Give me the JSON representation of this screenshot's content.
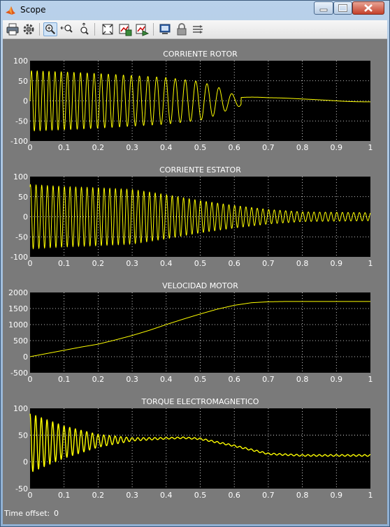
{
  "window": {
    "title": "Scope",
    "app_icon": "matlab-icon"
  },
  "window_buttons": [
    "minimize-icon",
    "maximize-icon",
    "close-icon"
  ],
  "toolbar": {
    "icons": [
      "print-icon",
      "parameters-icon",
      "zoom-icon",
      "zoom-x-icon",
      "zoom-y-icon",
      "autoscale-icon",
      "save-axes-icon",
      "restore-axes-icon",
      "floating-scope-icon",
      "lock-icon",
      "signal-selector-icon"
    ],
    "pressed": "zoom-icon"
  },
  "status": {
    "time_offset_label": "Time offset:",
    "time_offset_value": "0"
  },
  "colors": {
    "trace": "#ffff00",
    "axes_bg": "#000000",
    "figure_bg": "#7a7a7a",
    "grid": "#ffffff"
  },
  "chart_data": [
    {
      "type": "line",
      "title": "CORRIENTE ROTOR",
      "xlim": [
        0,
        1
      ],
      "ylim": [
        -100,
        100
      ],
      "xticks": [
        "0",
        "0.1",
        "0.2",
        "0.3",
        "0.4",
        "0.5",
        "0.6",
        "0.7",
        "0.8",
        "0.9",
        "1"
      ],
      "yticks": [
        "100",
        "50",
        "0",
        "-50",
        "-100"
      ],
      "grid": true,
      "series": [
        {
          "signal": "decaying oscillation",
          "envelope_t": [
            0,
            0.1,
            0.2,
            0.3,
            0.4,
            0.5,
            0.55,
            0.6,
            0.7,
            0.8,
            0.9,
            1
          ],
          "envelope_amp": [
            75,
            72,
            68,
            63,
            58,
            48,
            35,
            15,
            8,
            6,
            6,
            3
          ]
        }
      ]
    },
    {
      "type": "line",
      "title": "CORRIENTE ESTATOR",
      "xlim": [
        0,
        1
      ],
      "ylim": [
        -100,
        100
      ],
      "xticks": [
        "0",
        "0.1",
        "0.2",
        "0.3",
        "0.4",
        "0.5",
        "0.6",
        "0.7",
        "0.8",
        "0.9",
        "1"
      ],
      "yticks": [
        "100",
        "50",
        "0",
        "-50",
        "-100"
      ],
      "grid": true,
      "series": [
        {
          "signal": "oscillation",
          "envelope_t": [
            0,
            0.1,
            0.2,
            0.3,
            0.4,
            0.5,
            0.6,
            0.7,
            0.8,
            1
          ],
          "envelope_amp": [
            80,
            75,
            72,
            68,
            55,
            40,
            28,
            18,
            12,
            10
          ]
        }
      ]
    },
    {
      "type": "line",
      "title": "VELOCIDAD MOTOR",
      "xlim": [
        0,
        1
      ],
      "ylim": [
        -500,
        2000
      ],
      "xticks": [
        "0",
        "0.1",
        "0.2",
        "0.3",
        "0.4",
        "0.5",
        "0.6",
        "0.7",
        "0.8",
        "0.9",
        "1"
      ],
      "yticks": [
        "2000",
        "1500",
        "1000",
        "500",
        "0",
        "-500"
      ],
      "grid": true,
      "series": [
        {
          "x": [
            0,
            0.05,
            0.1,
            0.15,
            0.2,
            0.25,
            0.3,
            0.35,
            0.4,
            0.45,
            0.5,
            0.55,
            0.6,
            0.65,
            0.7,
            0.75,
            0.8,
            0.9,
            1.0
          ],
          "y": [
            0,
            100,
            200,
            300,
            390,
            520,
            660,
            820,
            1000,
            1170,
            1330,
            1480,
            1600,
            1680,
            1710,
            1720,
            1720,
            1720,
            1720
          ]
        }
      ]
    },
    {
      "type": "line",
      "title": "TORQUE ELECTROMAGNETICO",
      "xlim": [
        0,
        1
      ],
      "ylim": [
        -50,
        100
      ],
      "xticks": [
        "0",
        "0.1",
        "0.2",
        "0.3",
        "0.4",
        "0.5",
        "0.6",
        "0.7",
        "0.8",
        "0.9",
        "1"
      ],
      "yticks": [
        "100",
        "50",
        "0",
        "-50"
      ],
      "grid": true,
      "series": [
        {
          "mean_t": [
            0,
            0.15,
            0.3,
            0.45,
            0.5,
            0.6,
            0.7,
            0.8,
            1.0
          ],
          "mean_y": [
            35,
            38,
            42,
            45,
            43,
            30,
            15,
            12,
            12
          ],
          "osc_amp_t": [
            0,
            0.1,
            0.2,
            0.3,
            0.4,
            0.5,
            0.6,
            0.7,
            0.8,
            1
          ],
          "osc_amp": [
            55,
            30,
            12,
            3,
            1.5,
            1.5,
            1.5,
            1.5,
            1.5,
            1.5
          ]
        }
      ]
    }
  ]
}
